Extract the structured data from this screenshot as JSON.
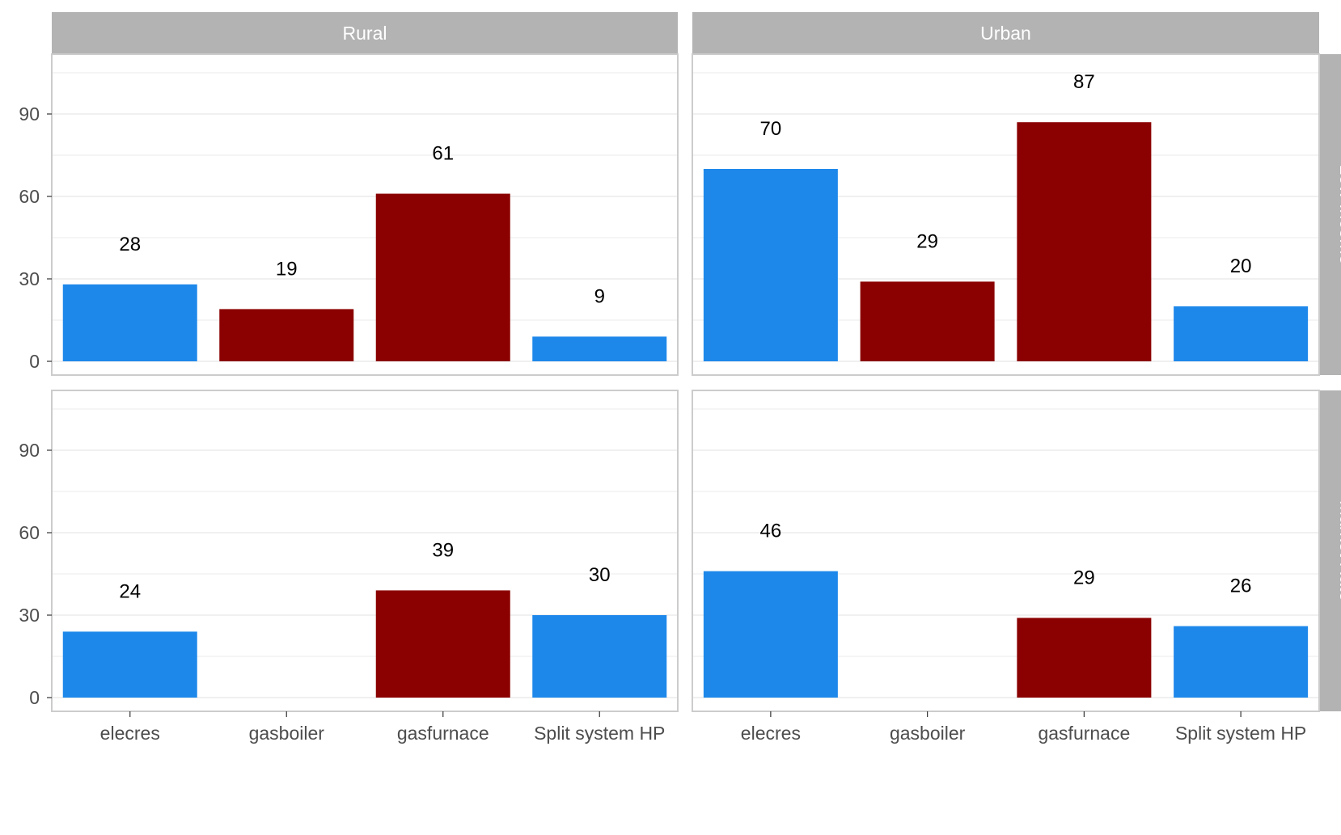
{
  "chart_data": {
    "type": "bar",
    "facet_columns": [
      "Rural",
      "Urban"
    ],
    "facet_rows": [
      "Low Income",
      "Market Rate"
    ],
    "categories": [
      "elecres",
      "gasboiler",
      "gasfurnace",
      "Split system HP"
    ],
    "ylim": [
      0,
      105
    ],
    "yticks": [
      "0",
      "30",
      "60",
      "90"
    ],
    "grid": true,
    "colors": {
      "elecres": "#1e88ea",
      "gasboiler": "#8b0000",
      "gasfurnace": "#8b0000",
      "Split system HP": "#1e88ea",
      "strip": "#b3b3b3",
      "grid": "#ebebeb",
      "border": "#cccccc"
    },
    "panels": [
      {
        "column": "Rural",
        "row": "Low Income",
        "values": [
          28,
          19,
          61,
          9
        ]
      },
      {
        "column": "Urban",
        "row": "Low Income",
        "values": [
          70,
          29,
          87,
          20
        ]
      },
      {
        "column": "Rural",
        "row": "Market Rate",
        "values": [
          24,
          null,
          39,
          30
        ]
      },
      {
        "column": "Urban",
        "row": "Market Rate",
        "values": [
          46,
          null,
          29,
          26
        ]
      }
    ]
  }
}
